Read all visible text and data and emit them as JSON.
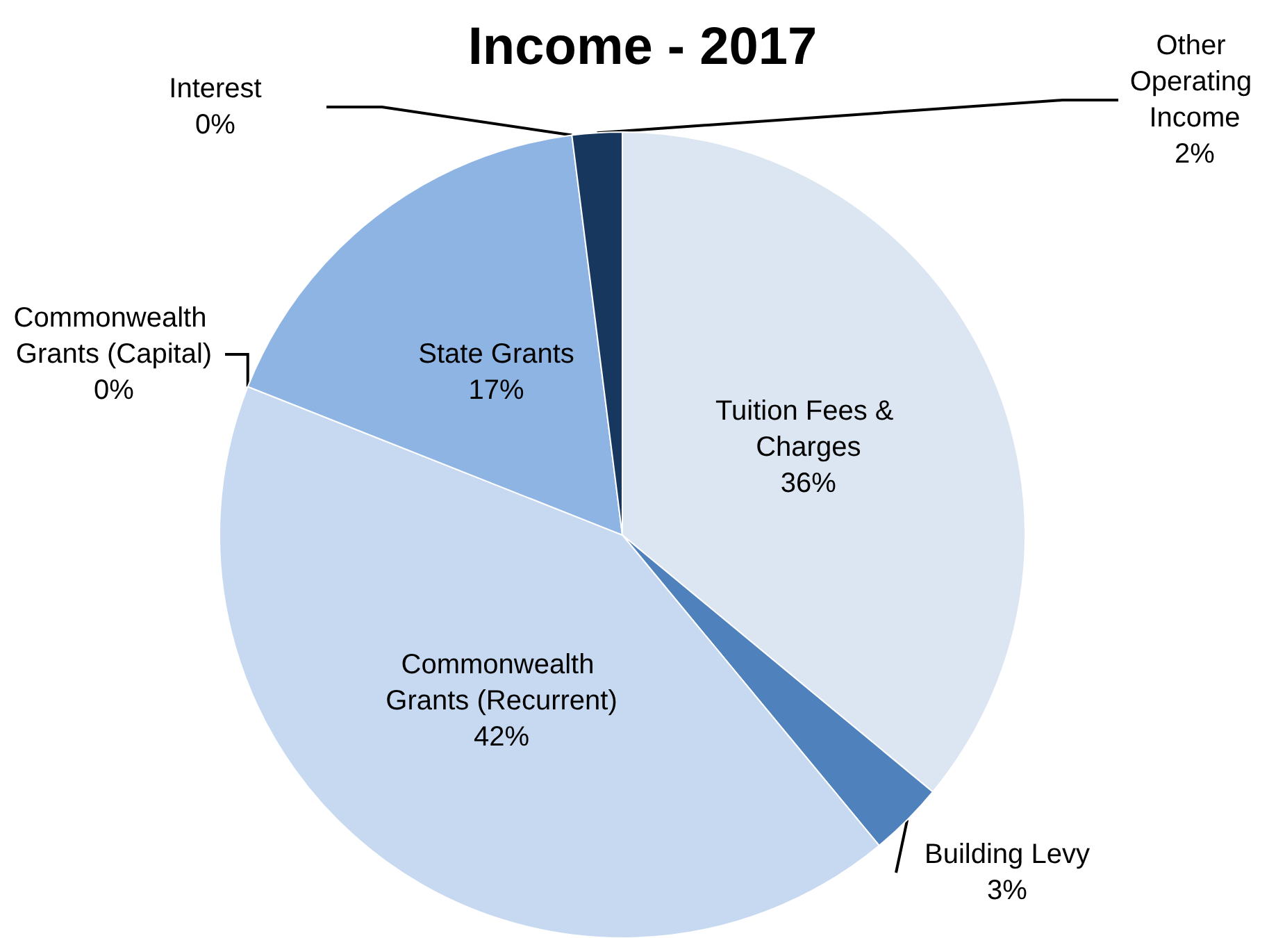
{
  "chart_data": {
    "type": "pie",
    "title": "Income - 2017",
    "categories": [
      "Tuition Fees & Charges",
      "Building Levy",
      "Commonwealth Grants (Recurrent)",
      "Commonwealth Grants (Capital)",
      "State Grants",
      "Interest",
      "Other Operating Income"
    ],
    "values": [
      36,
      3,
      42,
      0,
      17,
      0,
      2
    ],
    "value_labels": [
      "36%",
      "3%",
      "42%",
      "0%",
      "17%",
      "0%",
      "2%"
    ],
    "colors": [
      "#dce6f2",
      "#4f81bd",
      "#c6d9f1",
      "#7fa7d9",
      "#8eb4e3",
      "#558ed5",
      "#17375e"
    ],
    "legend": false
  }
}
